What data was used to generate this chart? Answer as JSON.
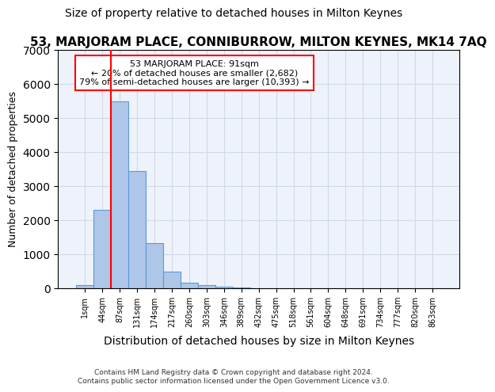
{
  "title": "53, MARJORAM PLACE, CONNIBURROW, MILTON KEYNES, MK14 7AQ",
  "subtitle": "Size of property relative to detached houses in Milton Keynes",
  "xlabel": "Distribution of detached houses by size in Milton Keynes",
  "ylabel": "Number of detached properties",
  "bin_labels": [
    "1sqm",
    "44sqm",
    "87sqm",
    "131sqm",
    "174sqm",
    "217sqm",
    "260sqm",
    "303sqm",
    "346sqm",
    "389sqm",
    "432sqm",
    "475sqm",
    "518sqm",
    "561sqm",
    "604sqm",
    "648sqm",
    "691sqm",
    "734sqm",
    "777sqm",
    "820sqm",
    "863sqm"
  ],
  "bar_values": [
    75,
    2300,
    5480,
    3450,
    1320,
    480,
    155,
    90,
    45,
    20,
    0,
    0,
    0,
    0,
    0,
    0,
    0,
    0,
    0,
    0,
    0
  ],
  "bar_color": "#aec6e8",
  "bar_edge_color": "#5b9bd5",
  "vline_x_index": 2,
  "property_sqm": 91,
  "annotation_text": "53 MARJORAM PLACE: 91sqm\n← 20% of detached houses are smaller (2,682)\n79% of semi-detached houses are larger (10,393) →",
  "annotation_box_color": "white",
  "annotation_box_edge_color": "red",
  "vline_color": "red",
  "footer_text": "Contains HM Land Registry data © Crown copyright and database right 2024.\nContains public sector information licensed under the Open Government Licence v3.0.",
  "ylim": [
    0,
    7000
  ],
  "grid_color": "#d0d8e8",
  "bg_color": "#eef2fa",
  "title_fontsize": 11,
  "subtitle_fontsize": 10,
  "xlabel_fontsize": 10,
  "ylabel_fontsize": 9
}
